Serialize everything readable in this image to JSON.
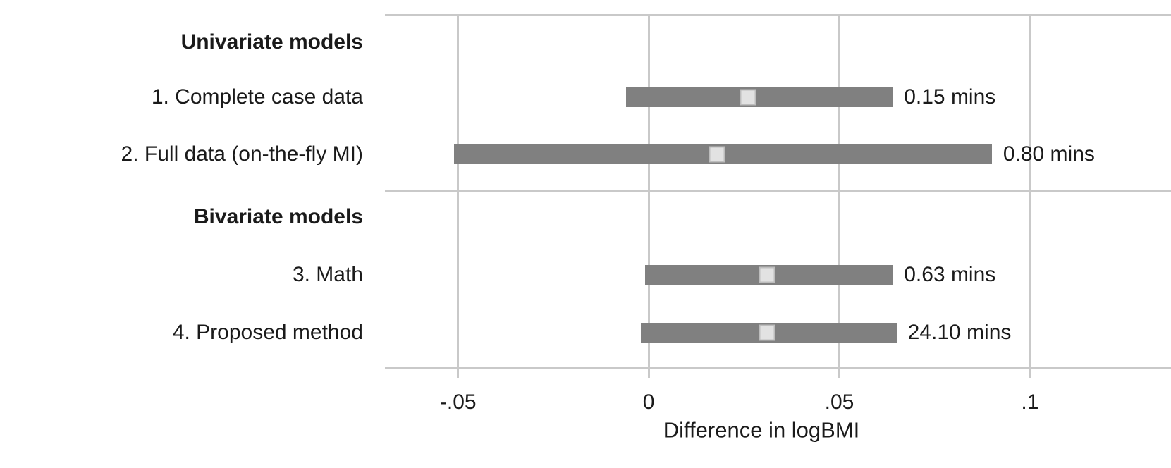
{
  "chart_data": {
    "type": "interval",
    "title": "",
    "xlabel": "Difference in logBMI",
    "xlim": [
      -0.069,
      0.137
    ],
    "grid": true,
    "x_ticks": [
      {
        "value": -0.05,
        "label": "-.05"
      },
      {
        "value": 0,
        "label": "0"
      },
      {
        "value": 0.05,
        "label": ".05"
      },
      {
        "value": 0.1,
        "label": ".1"
      }
    ],
    "rows": [
      {
        "kind": "header",
        "label": "Univariate models"
      },
      {
        "kind": "item",
        "label": "1. Complete case data",
        "estimate": 0.026,
        "ci_low": -0.006,
        "ci_high": 0.064,
        "runtime": "0.15 mins"
      },
      {
        "kind": "item",
        "label": "2. Full data (on-the-fly MI)",
        "estimate": 0.018,
        "ci_low": -0.051,
        "ci_high": 0.09,
        "runtime": "0.80 mins"
      },
      {
        "kind": "header",
        "label": "Bivariate models"
      },
      {
        "kind": "item",
        "label": "3. Math",
        "estimate": 0.031,
        "ci_low": -0.001,
        "ci_high": 0.064,
        "runtime": "0.63 mins"
      },
      {
        "kind": "item",
        "label": "4. Proposed method",
        "estimate": 0.031,
        "ci_low": -0.002,
        "ci_high": 0.065,
        "runtime": "24.10 mins"
      }
    ],
    "colors": {
      "bar": "#808080",
      "marker_fill": "#e2e2e2",
      "marker_border": "#bdbdbd",
      "grid": "#c9c9c9",
      "text": "#1a1a1a"
    }
  }
}
